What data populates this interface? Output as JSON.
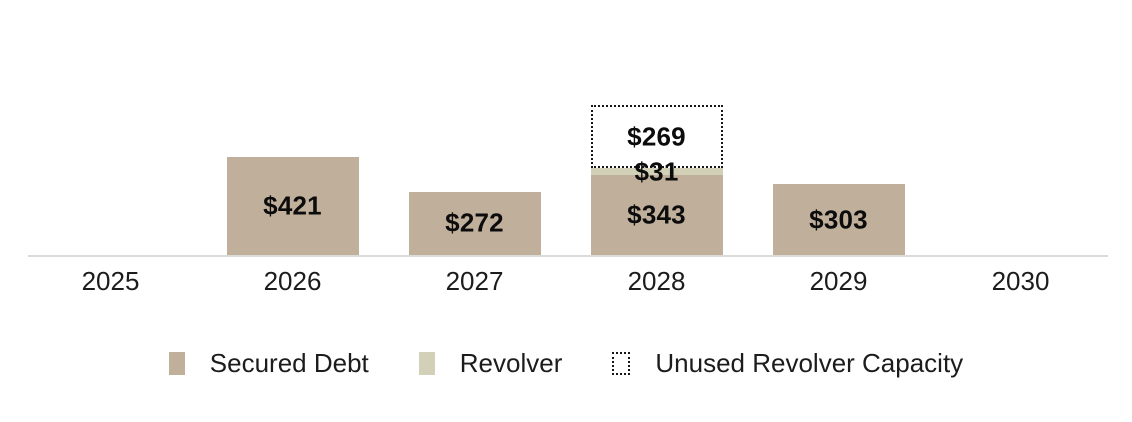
{
  "chart_data": {
    "type": "bar",
    "stacked": true,
    "title": "",
    "categories": [
      "2025",
      "2026",
      "2027",
      "2028",
      "2029",
      "2030"
    ],
    "series": [
      {
        "name": "Secured Debt",
        "style": "fill",
        "color": "#c0b09b",
        "values": [
          null,
          421,
          272,
          343,
          303,
          null
        ]
      },
      {
        "name": "Revolver",
        "style": "fill",
        "color": "#d2d1b7",
        "values": [
          null,
          null,
          null,
          31,
          null,
          null
        ]
      },
      {
        "name": "Unused Revolver Capacity",
        "style": "dotted-outline",
        "color": "#ffffff",
        "border_color": "#161616",
        "values": [
          null,
          null,
          null,
          269,
          null,
          null
        ]
      }
    ],
    "value_prefix": "$",
    "data_labels": true,
    "legend_position": "bottom",
    "gridlines": false,
    "x_axis_line": true,
    "axis_line_color": "#dbdbd7",
    "label_color": "#0c0c0c",
    "tick_color": "#1c1c1c",
    "ylim": [
      0,
      700
    ]
  }
}
